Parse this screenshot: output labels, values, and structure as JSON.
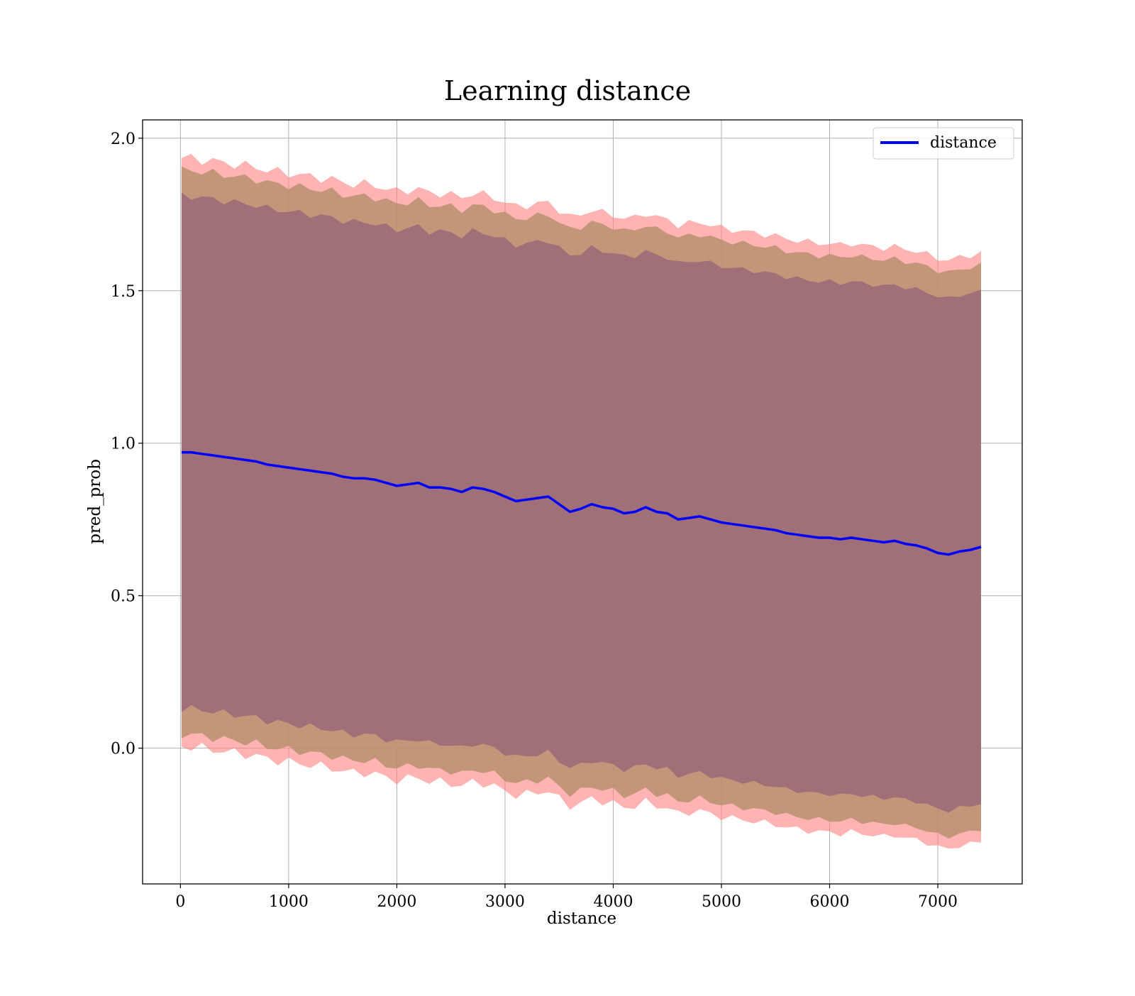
{
  "chart_data": {
    "type": "line",
    "title": "Learning distance",
    "xlabel": "distance",
    "ylabel": "pred_prob",
    "xlim": [
      -350,
      7780
    ],
    "ylim": [
      -0.445,
      2.06
    ],
    "xticks": [
      0,
      1000,
      2000,
      3000,
      4000,
      5000,
      6000,
      7000
    ],
    "xtick_labels": [
      "0",
      "1000",
      "2000",
      "3000",
      "4000",
      "5000",
      "6000",
      "7000"
    ],
    "yticks": [
      0.0,
      0.5,
      1.0,
      1.5,
      2.0
    ],
    "ytick_labels": [
      "0.0",
      "0.5",
      "1.0",
      "1.5",
      "2.0"
    ],
    "grid": true,
    "legend": {
      "position": "upper right",
      "entries": [
        "distance"
      ]
    },
    "colors": {
      "line": "#0000ff",
      "band_outer": "#ff8080",
      "band_middle": "#b89070",
      "band_inner": "#a07078",
      "grid": "#b0b0b0"
    },
    "x": [
      10,
      100,
      200,
      300,
      400,
      500,
      600,
      700,
      800,
      900,
      1000,
      1100,
      1200,
      1300,
      1400,
      1500,
      1600,
      1700,
      1800,
      1900,
      2000,
      2100,
      2200,
      2300,
      2400,
      2500,
      2600,
      2700,
      2800,
      2900,
      3000,
      3100,
      3200,
      3300,
      3400,
      3500,
      3600,
      3700,
      3800,
      3900,
      4000,
      4100,
      4200,
      4300,
      4400,
      4500,
      4600,
      4700,
      4800,
      4900,
      5000,
      5100,
      5200,
      5300,
      5400,
      5500,
      5600,
      5700,
      5800,
      5900,
      6000,
      6100,
      6200,
      6300,
      6400,
      6500,
      6600,
      6700,
      6800,
      6900,
      7000,
      7100,
      7200,
      7300,
      7400
    ],
    "series": [
      {
        "name": "distance",
        "values": [
          0.97,
          0.97,
          0.965,
          0.96,
          0.955,
          0.95,
          0.945,
          0.94,
          0.93,
          0.925,
          0.92,
          0.915,
          0.91,
          0.905,
          0.9,
          0.89,
          0.885,
          0.885,
          0.88,
          0.87,
          0.86,
          0.865,
          0.87,
          0.855,
          0.855,
          0.85,
          0.84,
          0.855,
          0.85,
          0.84,
          0.825,
          0.81,
          0.815,
          0.82,
          0.825,
          0.8,
          0.775,
          0.785,
          0.8,
          0.79,
          0.785,
          0.77,
          0.775,
          0.79,
          0.775,
          0.77,
          0.75,
          0.755,
          0.76,
          0.75,
          0.74,
          0.735,
          0.73,
          0.725,
          0.72,
          0.715,
          0.705,
          0.7,
          0.695,
          0.69,
          0.69,
          0.685,
          0.69,
          0.685,
          0.68,
          0.675,
          0.68,
          0.67,
          0.665,
          0.655,
          0.64,
          0.635,
          0.645,
          0.65,
          0.66
        ]
      }
    ],
    "bands": [
      {
        "label": "outer",
        "half_width_start": 0.965,
        "half_width_end": 0.965
      },
      {
        "label": "middle",
        "half_width_start": 0.925,
        "half_width_end": 0.925
      },
      {
        "label": "inner",
        "half_width_start": 0.84,
        "half_width_end": 0.84
      }
    ]
  }
}
